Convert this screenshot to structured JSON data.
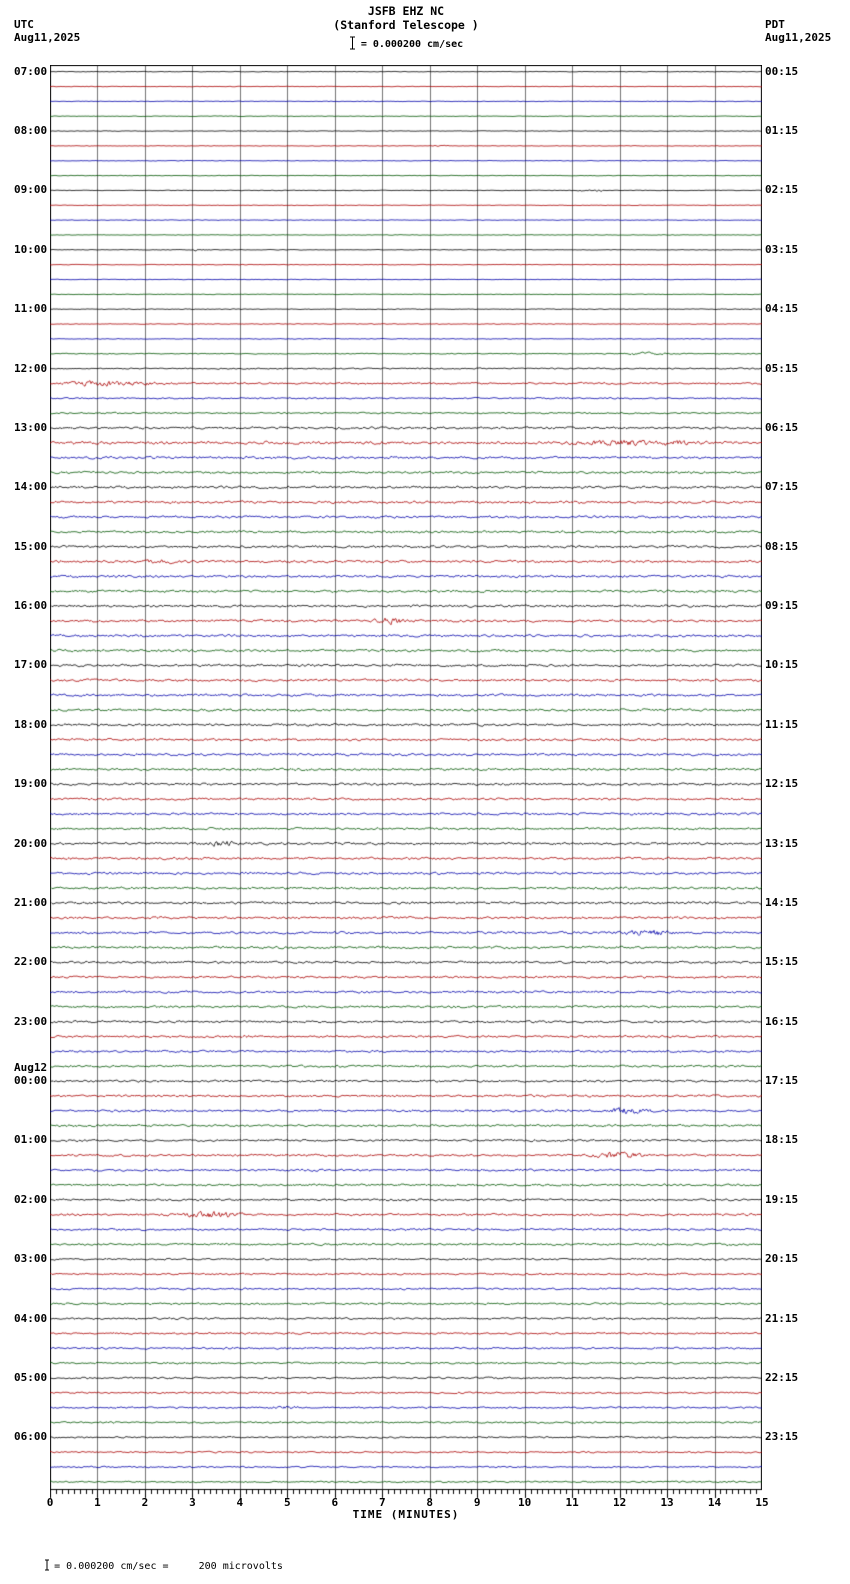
{
  "header": {
    "title": "JSFB EHZ NC",
    "subtitle": "(Stanford Telescope )",
    "scale_label": "= 0.000200 cm/sec",
    "left_tz": "UTC",
    "left_date": "Aug11,2025",
    "right_tz": "PDT",
    "right_date": "Aug11,2025"
  },
  "axis": {
    "xlabel": "TIME (MINUTES)",
    "ticks": [
      "0",
      "1",
      "2",
      "3",
      "4",
      "5",
      "6",
      "7",
      "8",
      "9",
      "10",
      "11",
      "12",
      "13",
      "14",
      "15"
    ]
  },
  "left_labels": [
    "07:00",
    "08:00",
    "09:00",
    "10:00",
    "11:00",
    "12:00",
    "13:00",
    "14:00",
    "15:00",
    "16:00",
    "17:00",
    "18:00",
    "19:00",
    "20:00",
    "21:00",
    "22:00",
    "23:00",
    "00:00",
    "01:00",
    "02:00",
    "03:00",
    "04:00",
    "05:00",
    "06:00"
  ],
  "date_break": {
    "label": "Aug12",
    "index": 17
  },
  "right_labels": [
    "00:15",
    "01:15",
    "02:15",
    "03:15",
    "04:15",
    "05:15",
    "06:15",
    "07:15",
    "08:15",
    "09:15",
    "10:15",
    "11:15",
    "12:15",
    "13:15",
    "14:15",
    "15:15",
    "16:15",
    "17:15",
    "18:15",
    "19:15",
    "20:15",
    "21:15",
    "22:15",
    "23:15"
  ],
  "footer": {
    "note": "= 0.000200 cm/sec =     200 microvolts"
  },
  "chart_data": {
    "type": "line",
    "subtype": "helicorder-seismogram",
    "station": "JSFB EHZ NC",
    "x_range_minutes": [
      0,
      15
    ],
    "minutes_per_row": 15,
    "rows_per_hour": 4,
    "hours": 24,
    "start_utc": "Aug11,2025 07:00",
    "end_utc": "Aug12,2025 07:00",
    "trace_colors": [
      "#000000",
      "#aa0000",
      "#0000aa",
      "#005500"
    ],
    "grid_color": "#333333",
    "row_amplitudes": [
      0.22,
      0.22,
      0.22,
      0.22,
      0.22,
      0.22,
      0.22,
      0.22,
      0.22,
      0.22,
      0.22,
      0.22,
      0.22,
      0.22,
      0.22,
      0.22,
      0.28,
      0.28,
      0.28,
      0.35,
      0.5,
      0.7,
      0.55,
      0.55,
      0.85,
      1.1,
      0.9,
      0.85,
      0.95,
      0.9,
      0.9,
      0.85,
      0.9,
      0.9,
      0.9,
      0.9,
      0.9,
      0.9,
      0.9,
      0.9,
      0.9,
      0.9,
      0.9,
      0.9,
      0.9,
      0.9,
      0.9,
      0.9,
      0.85,
      0.85,
      0.85,
      0.85,
      0.9,
      0.9,
      0.9,
      0.9,
      0.9,
      0.9,
      0.9,
      0.9,
      0.85,
      0.85,
      0.85,
      0.85,
      0.8,
      0.8,
      0.8,
      0.8,
      0.8,
      0.8,
      0.8,
      0.8,
      0.8,
      0.8,
      0.8,
      0.8,
      0.8,
      0.8,
      0.8,
      0.8,
      0.7,
      0.7,
      0.7,
      0.7,
      0.7,
      0.7,
      0.7,
      0.7,
      0.65,
      0.65,
      0.65,
      0.65,
      0.6,
      0.6,
      0.6,
      0.6
    ],
    "events": [
      {
        "row": 5,
        "minute": 8.2,
        "amp": 0.6,
        "width": 0.15
      },
      {
        "row": 8,
        "minute": 11.4,
        "amp": 0.7,
        "width": 0.3
      },
      {
        "row": 12,
        "minute": 3.1,
        "amp": 0.6,
        "width": 0.2
      },
      {
        "row": 19,
        "minute": 12.6,
        "amp": 0.8,
        "width": 0.5
      },
      {
        "row": 21,
        "minute": 1.2,
        "amp": 1.6,
        "width": 0.9
      },
      {
        "row": 25,
        "minute": 12.4,
        "amp": 1.4,
        "width": 1.2
      },
      {
        "row": 33,
        "minute": 2.3,
        "amp": 0.8,
        "width": 0.4
      },
      {
        "row": 37,
        "minute": 7.2,
        "amp": 1.8,
        "width": 0.35
      },
      {
        "row": 52,
        "minute": 3.6,
        "amp": 1.6,
        "width": 0.3
      },
      {
        "row": 58,
        "minute": 12.6,
        "amp": 2.0,
        "width": 0.5
      },
      {
        "row": 70,
        "minute": 12.2,
        "amp": 2.2,
        "width": 0.4
      },
      {
        "row": 73,
        "minute": 12.0,
        "amp": 2.2,
        "width": 0.5
      },
      {
        "row": 77,
        "minute": 3.4,
        "amp": 2.0,
        "width": 0.6
      },
      {
        "row": 90,
        "minute": 5.0,
        "amp": 0.6,
        "width": 0.3
      }
    ]
  }
}
